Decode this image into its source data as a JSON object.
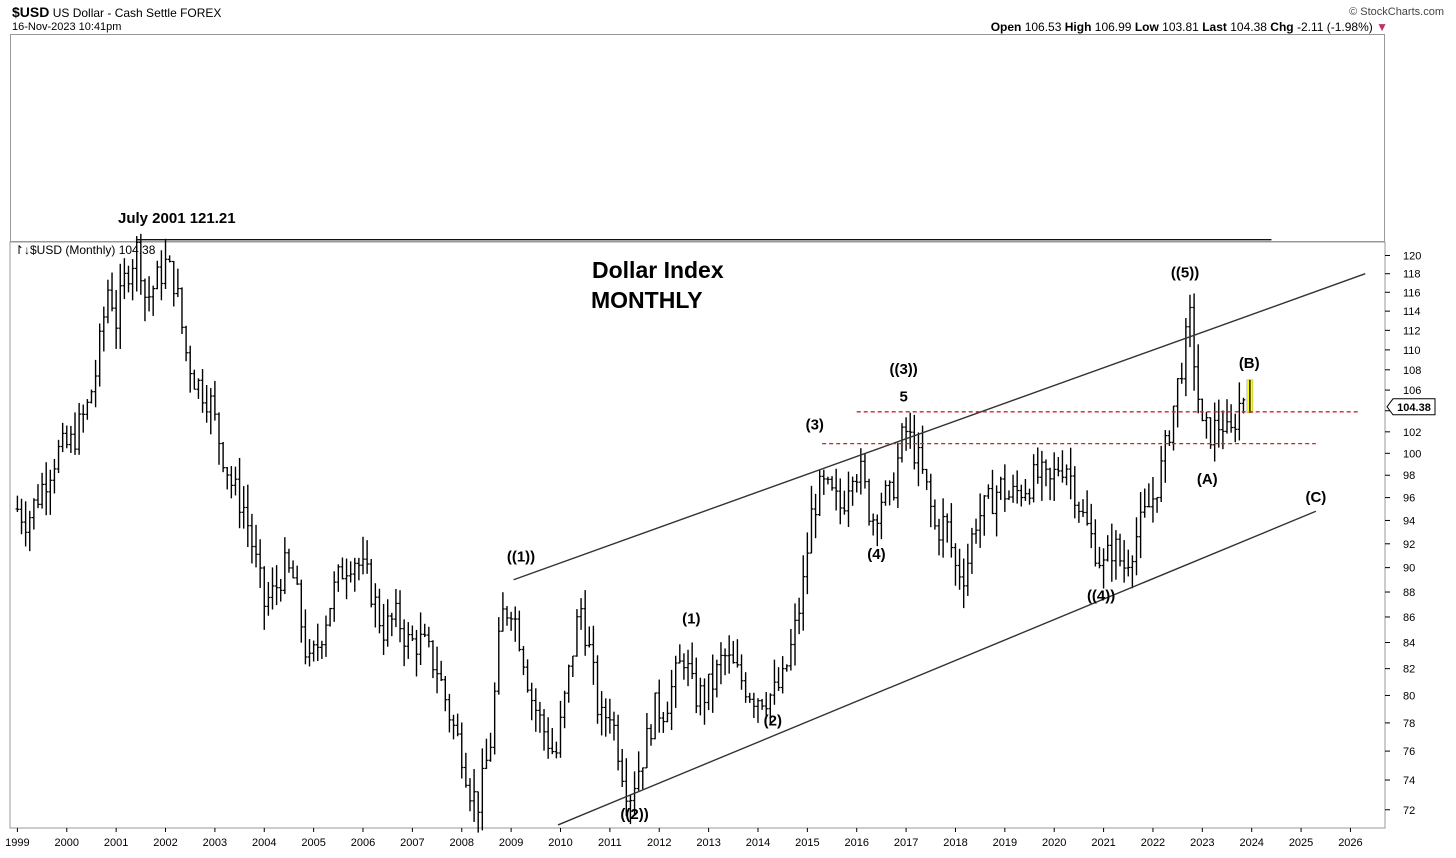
{
  "header": {
    "symbol": "$USD",
    "name": "US Dollar - Cash Settle",
    "exchange": "FOREX",
    "datetime": "16-Nov-2023 10:41pm",
    "brand": "© StockCharts.com",
    "open_label": "Open",
    "open": "106.53",
    "high_label": "High",
    "high": "106.99",
    "low_label": "Low",
    "low": "103.81",
    "last_label": "Last",
    "last": "104.38",
    "chg_label": "Chg",
    "chg": "-2.11 (-1.98%)",
    "chg_arrow": "▼"
  },
  "legend_label": "$USD (Monthly) 104.38",
  "annotation_high": "July 2001 121.21",
  "chart_title_1": "Dollar Index",
  "chart_title_2": "MONTHLY",
  "price_tag": "104.38",
  "colors": {
    "bars": "#000000",
    "support_lines": "#d62020",
    "highlight": "#ffff00"
  },
  "chart_data": {
    "type": "ohlc",
    "x_ticks": [
      "1999",
      "2000",
      "2001",
      "2002",
      "2003",
      "2004",
      "2005",
      "2006",
      "2007",
      "2008",
      "2009",
      "2010",
      "2011",
      "2012",
      "2013",
      "2014",
      "2015",
      "2016",
      "2017",
      "2018",
      "2019",
      "2020",
      "2021",
      "2022",
      "2023",
      "2024",
      "2025",
      "2026"
    ],
    "y_ticks": [
      72,
      74,
      76,
      78,
      80,
      82,
      84,
      86,
      88,
      90,
      92,
      94,
      96,
      98,
      100,
      102,
      104,
      106,
      108,
      110,
      112,
      114,
      116,
      118,
      120
    ],
    "ylim": [
      70.8,
      121.5
    ],
    "xlim": [
      1998.85,
      2026.7
    ],
    "y_scale": "log",
    "anchors": [
      [
        1999.0,
        95
      ],
      [
        1999.2,
        94
      ],
      [
        1999.5,
        97
      ],
      [
        1999.8,
        100
      ],
      [
        2000.1,
        101
      ],
      [
        2000.4,
        104
      ],
      [
        2000.6,
        108
      ],
      [
        2000.85,
        117
      ],
      [
        2001.0,
        113
      ],
      [
        2001.2,
        118
      ],
      [
        2001.45,
        121
      ],
      [
        2001.6,
        115
      ],
      [
        2001.8,
        117
      ],
      [
        2002.0,
        119
      ],
      [
        2002.2,
        117
      ],
      [
        2002.4,
        110
      ],
      [
        2002.6,
        107
      ],
      [
        2002.9,
        105
      ],
      [
        2003.1,
        101
      ],
      [
        2003.35,
        97
      ],
      [
        2003.6,
        95
      ],
      [
        2003.8,
        91
      ],
      [
        2004.0,
        87
      ],
      [
        2004.2,
        88
      ],
      [
        2004.4,
        90
      ],
      [
        2004.6,
        89
      ],
      [
        2004.9,
        82
      ],
      [
        2005.1,
        84
      ],
      [
        2005.4,
        88
      ],
      [
        2005.6,
        90
      ],
      [
        2005.8,
        91
      ],
      [
        2006.1,
        89
      ],
      [
        2006.4,
        85
      ],
      [
        2006.7,
        86
      ],
      [
        2006.9,
        84
      ],
      [
        2007.2,
        84
      ],
      [
        2007.5,
        82
      ],
      [
        2007.8,
        78
      ],
      [
        2008.0,
        76
      ],
      [
        2008.2,
        73
      ],
      [
        2008.35,
        72.5
      ],
      [
        2008.6,
        77
      ],
      [
        2008.8,
        86
      ],
      [
        2009.0,
        87
      ],
      [
        2009.2,
        84
      ],
      [
        2009.4,
        80
      ],
      [
        2009.6,
        78
      ],
      [
        2009.9,
        75.5
      ],
      [
        2010.1,
        80
      ],
      [
        2010.4,
        87
      ],
      [
        2010.6,
        83
      ],
      [
        2010.8,
        78
      ],
      [
        2011.0,
        79
      ],
      [
        2011.3,
        74
      ],
      [
        2011.4,
        73
      ],
      [
        2011.7,
        76
      ],
      [
        2011.9,
        79
      ],
      [
        2012.1,
        79
      ],
      [
        2012.3,
        81
      ],
      [
        2012.5,
        83
      ],
      [
        2012.7,
        80
      ],
      [
        2012.9,
        80
      ],
      [
        2013.1,
        81
      ],
      [
        2013.3,
        83
      ],
      [
        2013.5,
        82
      ],
      [
        2013.7,
        81
      ],
      [
        2013.9,
        80
      ],
      [
        2014.1,
        80
      ],
      [
        2014.3,
        80
      ],
      [
        2014.5,
        81
      ],
      [
        2014.7,
        84
      ],
      [
        2014.9,
        88
      ],
      [
        2015.1,
        95
      ],
      [
        2015.3,
        97
      ],
      [
        2015.5,
        96
      ],
      [
        2015.7,
        95
      ],
      [
        2015.9,
        99
      ],
      [
        2016.1,
        98
      ],
      [
        2016.3,
        94
      ],
      [
        2016.5,
        96
      ],
      [
        2016.7,
        96
      ],
      [
        2016.9,
        101
      ],
      [
        2017.0,
        102
      ],
      [
        2017.2,
        100
      ],
      [
        2017.4,
        97
      ],
      [
        2017.6,
        93
      ],
      [
        2017.8,
        94
      ],
      [
        2018.0,
        90
      ],
      [
        2018.2,
        89.5
      ],
      [
        2018.4,
        94
      ],
      [
        2018.6,
        95
      ],
      [
        2018.9,
        97
      ],
      [
        2019.1,
        96
      ],
      [
        2019.4,
        97
      ],
      [
        2019.7,
        98
      ],
      [
        2019.9,
        97
      ],
      [
        2020.1,
        99
      ],
      [
        2020.25,
        99
      ],
      [
        2020.4,
        97
      ],
      [
        2020.6,
        94
      ],
      [
        2020.8,
        92
      ],
      [
        2021.0,
        90
      ],
      [
        2021.2,
        92
      ],
      [
        2021.4,
        90
      ],
      [
        2021.6,
        92
      ],
      [
        2021.8,
        94
      ],
      [
        2022.0,
        96
      ],
      [
        2022.2,
        99
      ],
      [
        2022.4,
        104
      ],
      [
        2022.6,
        109
      ],
      [
        2022.75,
        113
      ],
      [
        2022.9,
        106
      ],
      [
        2023.0,
        102
      ],
      [
        2023.2,
        102
      ],
      [
        2023.4,
        103
      ],
      [
        2023.55,
        101
      ],
      [
        2023.7,
        104
      ],
      [
        2023.88,
        106
      ]
    ],
    "annotations": [
      {
        "text": "((1))",
        "x": 2009.2,
        "y": 90.5
      },
      {
        "text": "((2))",
        "x": 2011.5,
        "y": 71.4
      },
      {
        "text": "(1)",
        "x": 2012.65,
        "y": 85.5
      },
      {
        "text": "(2)",
        "x": 2014.3,
        "y": 77.8
      },
      {
        "text": "(3)",
        "x": 2015.15,
        "y": 102.2
      },
      {
        "text": "(4)",
        "x": 2016.4,
        "y": 90.7
      },
      {
        "text": "((3))",
        "x": 2016.95,
        "y": 107.6
      },
      {
        "text": "5",
        "x": 2016.95,
        "y": 104.9
      },
      {
        "text": "((4))",
        "x": 2020.95,
        "y": 87.3
      },
      {
        "text": "((5))",
        "x": 2022.65,
        "y": 117.6
      },
      {
        "text": "(B)",
        "x": 2023.95,
        "y": 108.2
      },
      {
        "text": "(A)",
        "x": 2023.1,
        "y": 97.2
      },
      {
        "text": "(C)",
        "x": 2025.3,
        "y": 95.6
      }
    ],
    "channel_lines": [
      {
        "x1": 2009.05,
        "y1": 89.0,
        "x2": 2026.3,
        "y2": 118.0
      },
      {
        "x1": 2009.95,
        "y1": 71.0,
        "x2": 2025.3,
        "y2": 94.8
      }
    ],
    "dashed_lines": [
      {
        "x1": 2016.0,
        "y1": 103.9,
        "x2": 2026.2,
        "y2": 103.9
      },
      {
        "x1": 2015.3,
        "y1": 100.9,
        "x2": 2025.3,
        "y2": 100.9
      }
    ],
    "high_line": {
      "x1": 2001.4,
      "x2": 2024.4,
      "y": 121.2
    }
  }
}
